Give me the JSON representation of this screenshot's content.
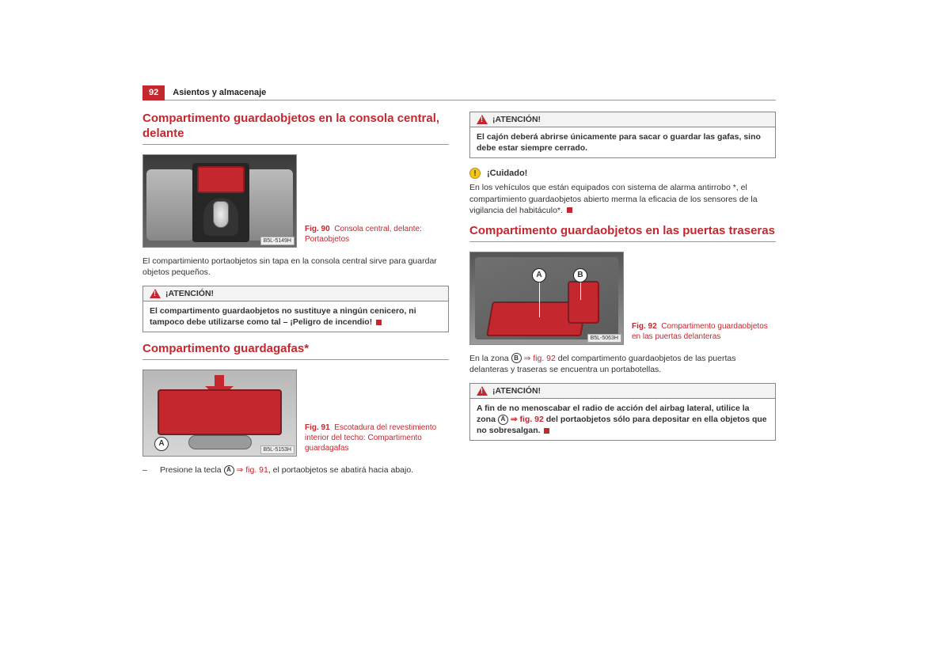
{
  "colors": {
    "accent": "#c4272e",
    "warn_yellow": "#f5c518",
    "border": "#888888",
    "text": "#333333",
    "header_bg": "#f3f3f3"
  },
  "page_number": "92",
  "breadcrumb": "Asientos y almacenaje",
  "left": {
    "section1": {
      "title": "Compartimento guardaobjetos en la consola central, delante",
      "fig": {
        "label": "Fig. 90",
        "caption": "Consola central, delante: Portaobjetos",
        "tag": "B5L-5149H"
      },
      "body": "El compartimiento portaobjetos sin tapa en la consola central sirve para guardar objetos pequeños.",
      "alert": {
        "title": "¡ATENCIÓN!",
        "body": "El compartimento guardaobjetos no sustituye a ningún cenicero, ni tampoco debe utilizarse como tal – ¡Peligro de incendio!"
      }
    },
    "section2": {
      "title": "Compartimento guardagafas*",
      "fig": {
        "label": "Fig. 91",
        "caption": "Escotadura del revestimiento interior del techo: Compartimento guardagafas",
        "tag": "B5L-5153H",
        "letter": "A"
      },
      "dash_pre": "Presione la tecla ",
      "dash_letter": "A",
      "dash_ref": "fig. 91",
      "dash_post": ", el portaobjetos se abatirá hacia abajo."
    }
  },
  "right": {
    "alert1": {
      "title": "¡ATENCIÓN!",
      "body": "El cajón deberá abrirse únicamente para sacar o guardar las gafas, sino debe estar siempre cerrado."
    },
    "caution": {
      "title": "¡Cuidado!",
      "body": "En los vehículos que están equipados con sistema de alarma antirrobo *, el compartimiento guardaobjetos abierto merma la eficacia de los sensores de la vigilancia del habitáculo*."
    },
    "section3": {
      "title": "Compartimento guardaobjetos en las puertas traseras",
      "fig": {
        "label": "Fig. 92",
        "caption": "Compartimento guardaobjetos en las puertas delanteras",
        "tag": "B5L-5063H",
        "letterA": "A",
        "letterB": "B"
      },
      "body_pre": "En la zona ",
      "body_letter": "B",
      "body_ref": "fig. 92",
      "body_post": " del compartimento guardaobjetos de las puertas delanteras y traseras se encuentra un portabotellas.",
      "alert": {
        "title": "¡ATENCIÓN!",
        "body_pre": "A fin de no menoscabar el radio de acción del airbag lateral, utilice la zona ",
        "body_letter": "A",
        "body_ref": "fig. 92",
        "body_post": " del portaobjetos sólo para depositar en ella objetos que no sobresalgan."
      }
    }
  }
}
